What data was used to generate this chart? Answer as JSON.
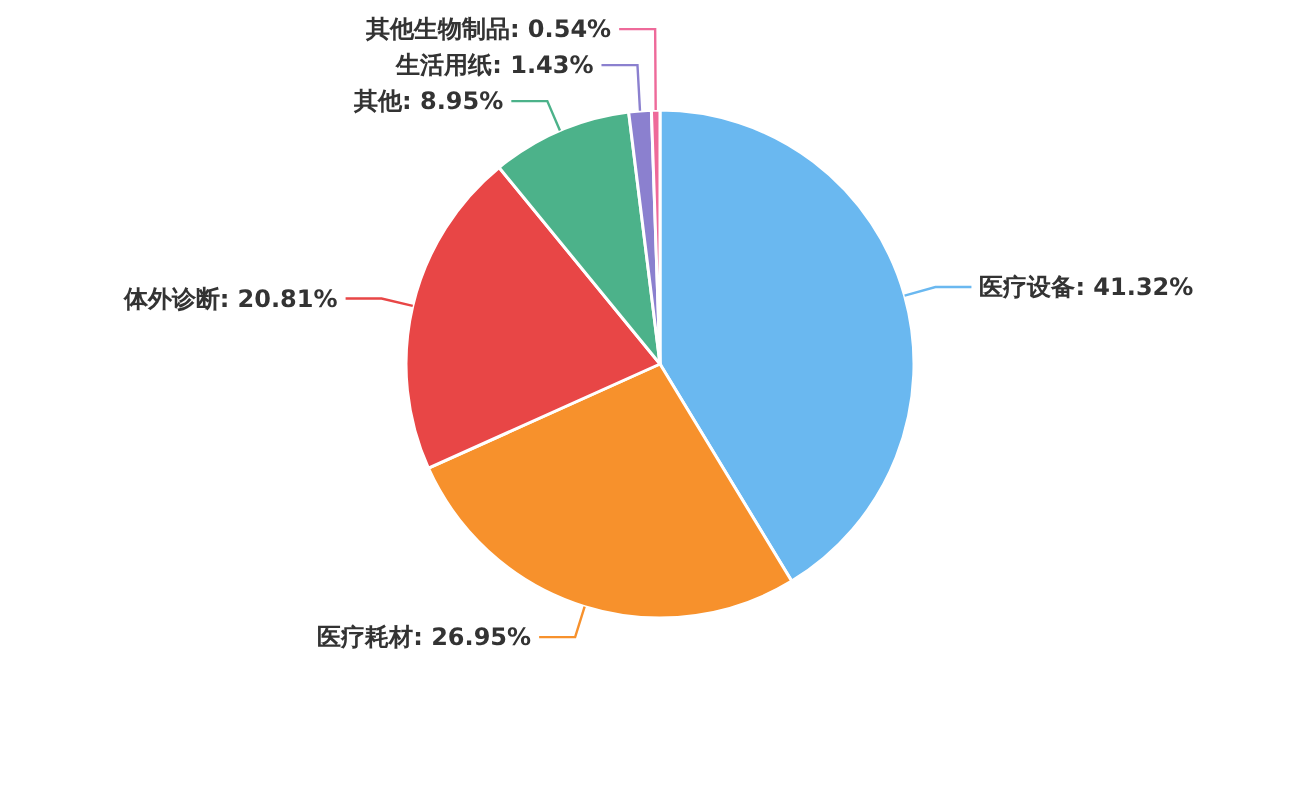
{
  "chart_data": {
    "type": "pie",
    "categories": [
      "医疗设备",
      "医疗耗材",
      "体外诊断",
      "其他",
      "生活用纸",
      "其他生物制品"
    ],
    "values": [
      41.32,
      26.95,
      20.81,
      8.95,
      1.43,
      0.54
    ],
    "colors": [
      "#6ab8f0",
      "#f7912c",
      "#e84646",
      "#4cb28a",
      "#8b80cf",
      "#ee6a9a"
    ],
    "value_labels": [
      ": 41.32%",
      ": 26.95%",
      ": 20.81%",
      ": 8.95%",
      ": 1.43%",
      ": 0.54%"
    ]
  }
}
